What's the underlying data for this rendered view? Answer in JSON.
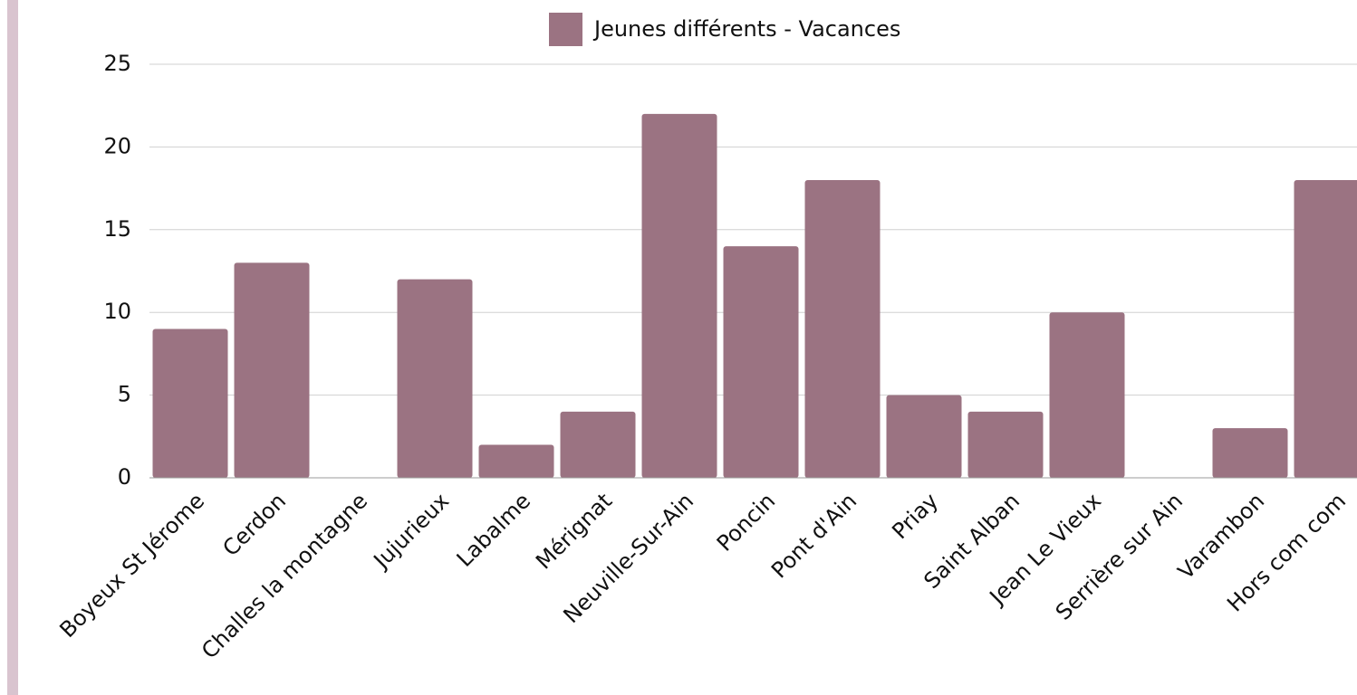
{
  "chart_data": {
    "type": "bar",
    "categories": [
      "Boyeux St Jérome",
      "Cerdon",
      "Challes la montagne",
      "Jujurieux",
      "Labalme",
      "Mérignat",
      "Neuville-Sur-Ain",
      "Poncin",
      "Pont d'Ain",
      "Priay",
      "Saint Alban",
      "Jean Le Vieux",
      "Serrière sur Ain",
      "Varambon",
      "Hors com com"
    ],
    "series": [
      {
        "name": "Jeunes différents - Vacances",
        "color": "#9b7382",
        "values": [
          9,
          13,
          0,
          12,
          2,
          4,
          22,
          14,
          18,
          5,
          4,
          10,
          0,
          3,
          18
        ]
      }
    ],
    "ylim": [
      0,
      25
    ],
    "yticks": [
      0,
      5,
      10,
      15,
      20,
      25
    ],
    "grid": true,
    "legend": "top"
  }
}
